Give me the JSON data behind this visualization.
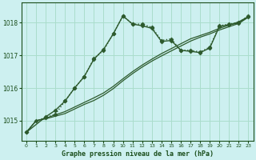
{
  "bg_color": "#cdf0f0",
  "grid_color": "#aaddcc",
  "line_color": "#2d5a2d",
  "title": "Graphe pression niveau de la mer (hPa)",
  "title_color": "#1a4d1a",
  "xlabel_ticks": [
    0,
    1,
    2,
    3,
    4,
    5,
    6,
    7,
    8,
    9,
    10,
    11,
    12,
    13,
    14,
    15,
    16,
    17,
    18,
    19,
    20,
    21,
    22,
    23
  ],
  "ylim": [
    1014.4,
    1018.6
  ],
  "yticks": [
    1015,
    1016,
    1017,
    1018
  ],
  "series": [
    {
      "x": [
        0,
        1,
        2,
        3,
        4,
        5,
        6,
        7,
        8,
        9,
        10,
        11,
        12,
        13,
        14,
        15,
        16,
        17,
        18,
        19,
        20,
        21,
        22,
        23
      ],
      "y": [
        1014.65,
        1015.0,
        1015.1,
        1015.2,
        1015.6,
        1016.0,
        1016.35,
        1016.9,
        1017.15,
        1017.65,
        1018.2,
        1017.95,
        1017.95,
        1017.85,
        1017.45,
        1017.5,
        1017.15,
        1017.15,
        1017.1,
        1017.25,
        1017.9,
        1017.95,
        1018.0,
        1018.2
      ],
      "marker": "D",
      "markersize": 2.5,
      "linestyle": ":",
      "linewidth": 1.0
    },
    {
      "x": [
        0,
        2,
        3,
        4,
        5,
        6,
        7,
        8,
        9,
        10,
        11,
        12,
        13,
        14,
        15,
        16,
        17,
        18,
        19,
        20,
        21,
        22,
        23
      ],
      "y": [
        1014.65,
        1015.12,
        1015.32,
        1015.6,
        1016.0,
        1016.35,
        1016.88,
        1017.18,
        1017.65,
        1018.2,
        1017.95,
        1017.9,
        1017.82,
        1017.42,
        1017.45,
        1017.15,
        1017.12,
        1017.08,
        1017.22,
        1017.88,
        1017.93,
        1017.98,
        1018.18
      ],
      "marker": "D",
      "markersize": 2.5,
      "linestyle": "-",
      "linewidth": 1.0
    },
    {
      "x": [
        0,
        1,
        2,
        3,
        4,
        5,
        6,
        7,
        8,
        9,
        10,
        11,
        12,
        13,
        14,
        15,
        16,
        17,
        18,
        19,
        20,
        21,
        22,
        23
      ],
      "y": [
        1014.65,
        1015.0,
        1015.08,
        1015.18,
        1015.28,
        1015.42,
        1015.56,
        1015.7,
        1015.85,
        1016.05,
        1016.28,
        1016.5,
        1016.7,
        1016.88,
        1017.05,
        1017.2,
        1017.35,
        1017.5,
        1017.6,
        1017.7,
        1017.82,
        1017.92,
        1018.02,
        1018.18
      ],
      "marker": null,
      "markersize": null,
      "linestyle": "-",
      "linewidth": 0.9
    },
    {
      "x": [
        0,
        1,
        2,
        3,
        4,
        5,
        6,
        7,
        8,
        9,
        10,
        11,
        12,
        13,
        14,
        15,
        16,
        17,
        18,
        19,
        20,
        21,
        22,
        23
      ],
      "y": [
        1014.65,
        1015.0,
        1015.06,
        1015.14,
        1015.22,
        1015.36,
        1015.5,
        1015.62,
        1015.78,
        1015.98,
        1016.22,
        1016.44,
        1016.64,
        1016.82,
        1016.98,
        1017.13,
        1017.28,
        1017.43,
        1017.55,
        1017.65,
        1017.77,
        1017.87,
        1017.97,
        1018.16
      ],
      "marker": null,
      "markersize": null,
      "linestyle": "-",
      "linewidth": 0.9
    }
  ]
}
